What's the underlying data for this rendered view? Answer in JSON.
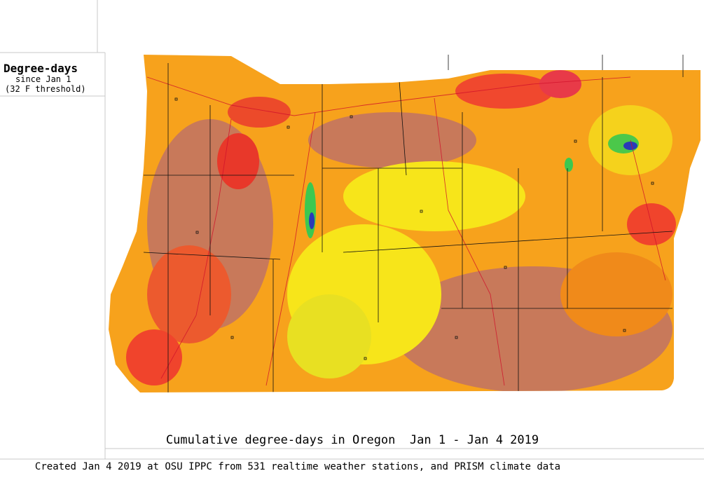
{
  "legend": {
    "title": "Degree-days",
    "subtitle": "since Jan 1",
    "note": "(32 F threshold)"
  },
  "map": {
    "title": "Cumulative degree-days in Oregon  Jan 1 - Jan 4 2019"
  },
  "footer": {
    "credit": "Created Jan 4 2019 at OSU IPPC from 531 realtime weather stations, and PRISM climate data"
  }
}
